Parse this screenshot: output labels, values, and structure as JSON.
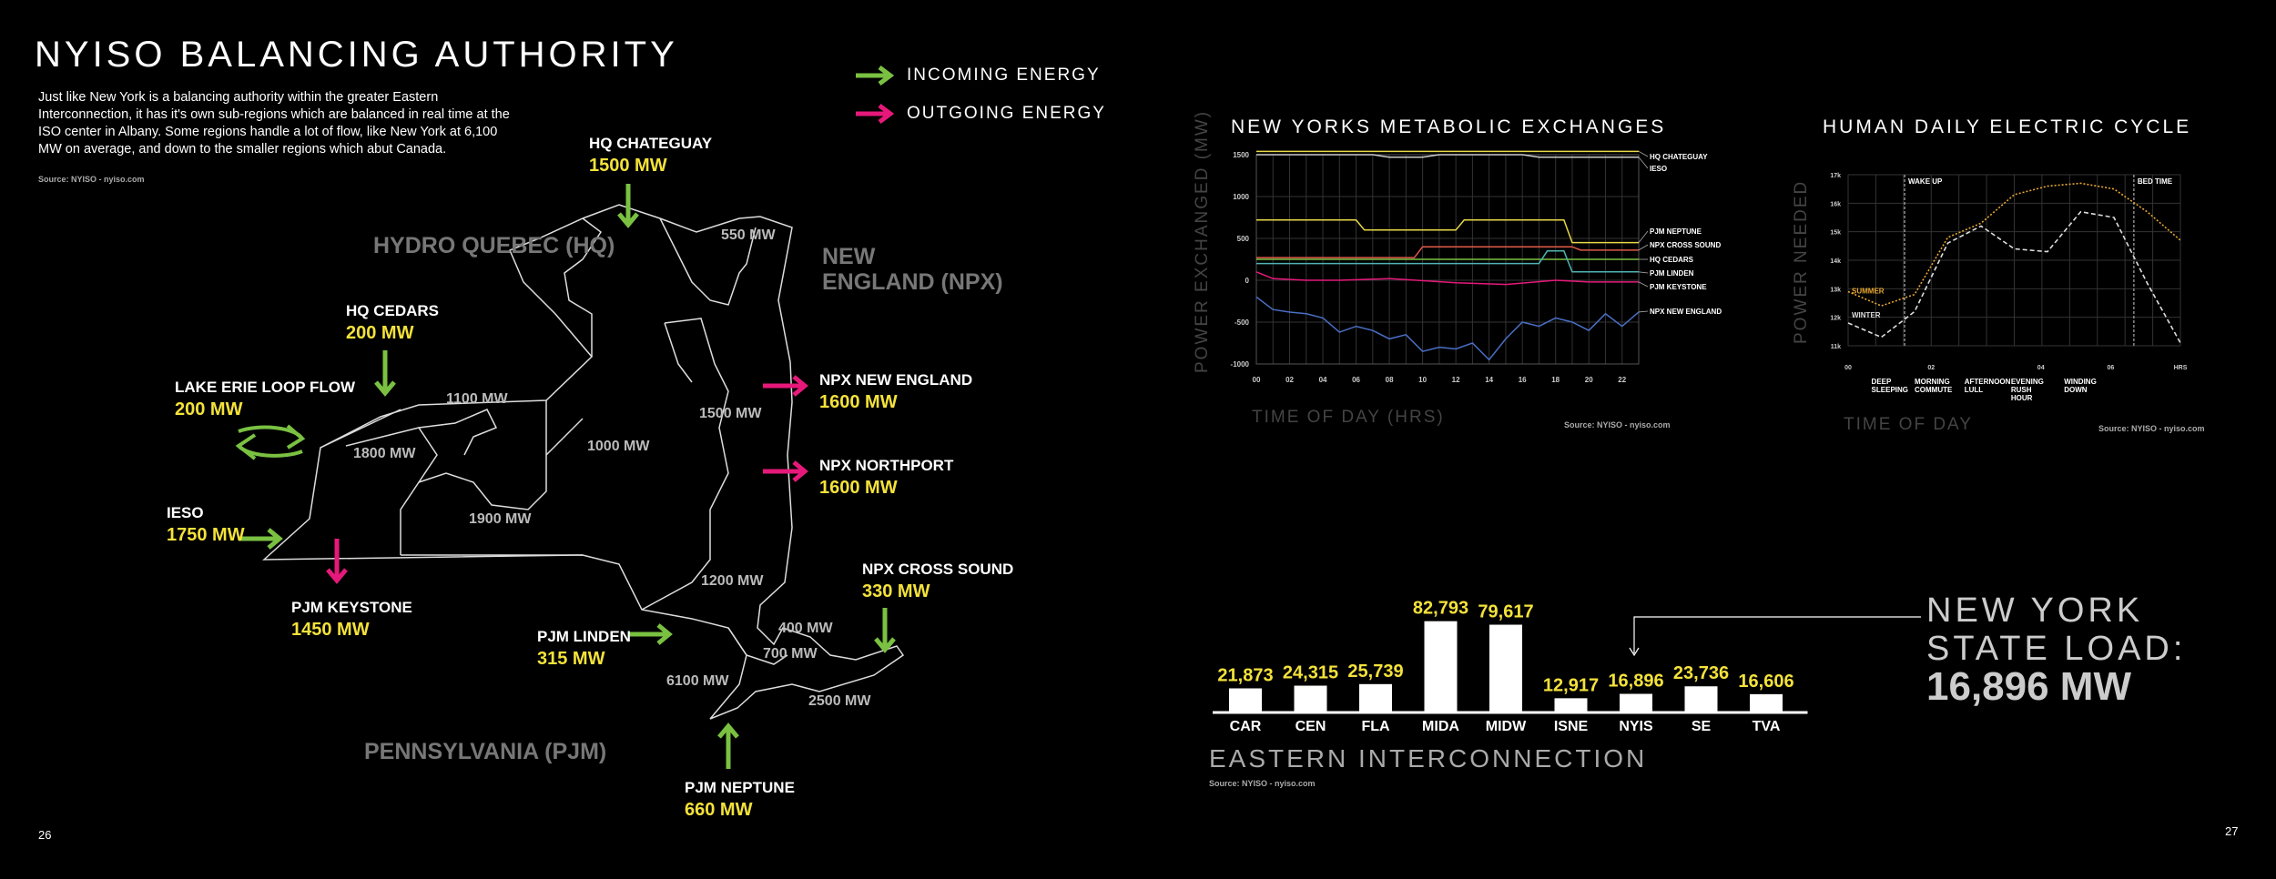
{
  "left_page": {
    "title": "NYISO BALANCING AUTHORITY",
    "intro": "Just like New York is a balancing authority within the greater Eastern Interconnection, it has it's own sub-regions which are balanced in real time at the ISO center in Albany. Some regions handle a lot of flow, like New York at 6,100 MW on average, and down to the smaller regions which abut Canada.",
    "source": "Source: NYISO - nyiso.com",
    "page_number": "26",
    "legend": {
      "incoming": "INCOMING ENERGY",
      "outgoing": "OUTGOING ENERGY"
    },
    "regions": {
      "hq": "HYDRO QUEBEC (HQ)",
      "ne1": "NEW",
      "ne2": "ENGLAND (NPX)",
      "pjm": "PENNSYLVANIA (PJM)"
    },
    "interior_mw": [
      "550 MW",
      "1100 MW",
      "1800 MW",
      "1000 MW",
      "1500 MW",
      "1900 MW",
      "1200 MW",
      "400 MW",
      "700 MW",
      "6100 MW",
      "2500 MW"
    ],
    "flows": [
      {
        "name": "HQ CHATEGUAY",
        "mw": "1500 MW"
      },
      {
        "name": "HQ CEDARS",
        "mw": "200 MW"
      },
      {
        "name": "LAKE ERIE LOOP FLOW",
        "mw": "200 MW"
      },
      {
        "name": "IESO",
        "mw": "1750 MW"
      },
      {
        "name": "PJM KEYSTONE",
        "mw": "1450 MW"
      },
      {
        "name": "PJM LINDEN",
        "mw": "315 MW"
      },
      {
        "name": "PJM NEPTUNE",
        "mw": "660 MW"
      },
      {
        "name": "NPX NEW ENGLAND",
        "mw": "1600 MW"
      },
      {
        "name": "NPX NORTHPORT",
        "mw": "1600 MW"
      },
      {
        "name": "NPX CROSS SOUND",
        "mw": "330 MW"
      }
    ],
    "colors": {
      "incoming": "#7ac142",
      "outgoing": "#e6197a",
      "value": "#f4e23a"
    }
  },
  "right_page": {
    "page_number": "27",
    "state_load": {
      "line1": "NEW YORK",
      "line2": "STATE LOAD:",
      "value": "16,896 MW"
    },
    "eastern_title": "EASTERN INTERCONNECTION",
    "eastern_source": "Source: NYISO - nyiso.com"
  },
  "chart_data": [
    {
      "type": "line",
      "title": "NEW YORKS METABOLIC EXCHANGES",
      "xlabel": "TIME OF DAY (HRS)",
      "ylabel": "POWER EXCHANGED (MW)",
      "source": "Source: NYISO - nyiso.com",
      "x_ticks": [
        "00",
        "02",
        "04",
        "06",
        "08",
        "10",
        "12",
        "14",
        "16",
        "18",
        "20",
        "22"
      ],
      "y_ticks": [
        "1500",
        "1000",
        "500",
        "0",
        "-500",
        "-1000"
      ],
      "xlim": [
        0,
        23
      ],
      "ylim": [
        -1000,
        1500
      ],
      "grid": true,
      "series": [
        {
          "name": "HQ CHATEGUAY",
          "color": "#e8d84a",
          "x": [
            0,
            23
          ],
          "y": [
            1540,
            1540
          ]
        },
        {
          "name": "IESO",
          "color": "#cccccc",
          "x": [
            0,
            7,
            8,
            10,
            11,
            16,
            17,
            23
          ],
          "y": [
            1500,
            1500,
            1470,
            1470,
            1500,
            1500,
            1470,
            1470
          ]
        },
        {
          "name": "PJM NEPTUNE",
          "color": "#e8d84a",
          "x": [
            0,
            6,
            6.5,
            12,
            12.5,
            18.5,
            19,
            23
          ],
          "y": [
            720,
            720,
            600,
            600,
            720,
            720,
            450,
            450
          ]
        },
        {
          "name": "NPX CROSS SOUND",
          "color": "#e05a4a",
          "x": [
            0,
            9.5,
            10,
            19,
            19.5,
            23
          ],
          "y": [
            270,
            270,
            400,
            400,
            360,
            360
          ]
        },
        {
          "name": "HQ CEDARS",
          "color": "#7ac142",
          "x": [
            0,
            23
          ],
          "y": [
            250,
            250
          ]
        },
        {
          "name": "PJM LINDEN",
          "color": "#4fb3b3",
          "x": [
            0,
            17,
            17.5,
            18.5,
            19,
            23
          ],
          "y": [
            200,
            200,
            350,
            350,
            100,
            100
          ]
        },
        {
          "name": "PJM KEYSTONE",
          "color": "#e6197a",
          "x": [
            0,
            1,
            3,
            5,
            8,
            12,
            15,
            18,
            20,
            23
          ],
          "y": [
            100,
            20,
            0,
            0,
            20,
            -30,
            -50,
            0,
            -20,
            -20
          ]
        },
        {
          "name": "NPX NEW ENGLAND",
          "color": "#4a6fc4",
          "x": [
            0,
            1,
            2,
            3,
            4,
            5,
            6,
            7,
            8,
            9,
            10,
            11,
            12,
            13,
            14,
            15,
            16,
            17,
            18,
            19,
            20,
            21,
            22,
            23
          ],
          "y": [
            -200,
            -350,
            -380,
            -400,
            -450,
            -620,
            -550,
            -600,
            -700,
            -650,
            -850,
            -800,
            -820,
            -750,
            -950,
            -700,
            -500,
            -550,
            -450,
            -500,
            -600,
            -400,
            -550,
            -380
          ]
        }
      ]
    },
    {
      "type": "line",
      "title": "HUMAN DAILY ELECTRIC CYCLE",
      "xlabel": "TIME OF DAY",
      "ylabel": "POWER NEEDED",
      "source": "Source: NYISO - nyiso.com",
      "x_ticks": [
        "00",
        "02",
        "04",
        "06",
        "HRS"
      ],
      "y_ticks": [
        "17k",
        "16k",
        "15k",
        "14k",
        "13k",
        "12k",
        "11k"
      ],
      "period_labels": [
        "DEEP SLEEPING",
        "MORNING COMMUTE",
        "AFTERNOON LULL",
        "EVENING RUSH HOUR",
        "WINDING DOWN"
      ],
      "markers": [
        "WAKE UP",
        "BED TIME"
      ],
      "grid": true,
      "series": [
        {
          "name": "SUMMER",
          "color": "#e8a732",
          "style": "dotted",
          "x": [
            0,
            0.1,
            0.2,
            0.3,
            0.4,
            0.5,
            0.6,
            0.7,
            0.8,
            0.9,
            1.0
          ],
          "y": [
            12.9,
            12.4,
            12.8,
            14.8,
            15.3,
            16.3,
            16.6,
            16.7,
            16.5,
            15.7,
            14.7
          ]
        },
        {
          "name": "WINTER",
          "color": "#dddddd",
          "style": "dashed",
          "x": [
            0,
            0.1,
            0.2,
            0.3,
            0.4,
            0.5,
            0.6,
            0.7,
            0.8,
            0.9,
            1.0
          ],
          "y": [
            11.8,
            11.3,
            12.2,
            14.6,
            15.2,
            14.4,
            14.3,
            15.7,
            15.5,
            13.2,
            11.1
          ]
        }
      ]
    },
    {
      "type": "bar",
      "title": "EASTERN INTERCONNECTION",
      "categories": [
        "CAR",
        "CEN",
        "FLA",
        "MIDA",
        "MIDW",
        "ISNE",
        "NYIS",
        "SE",
        "TVA"
      ],
      "labels": [
        "21,873",
        "24,315",
        "25,739",
        "82,793",
        "79,617",
        "12,917",
        "16,896",
        "23,736",
        "16,606"
      ],
      "values": [
        21873,
        24315,
        25739,
        82793,
        79617,
        12917,
        16896,
        23736,
        16606
      ],
      "highlight": "NYIS",
      "ylim": [
        0,
        85000
      ]
    }
  ]
}
